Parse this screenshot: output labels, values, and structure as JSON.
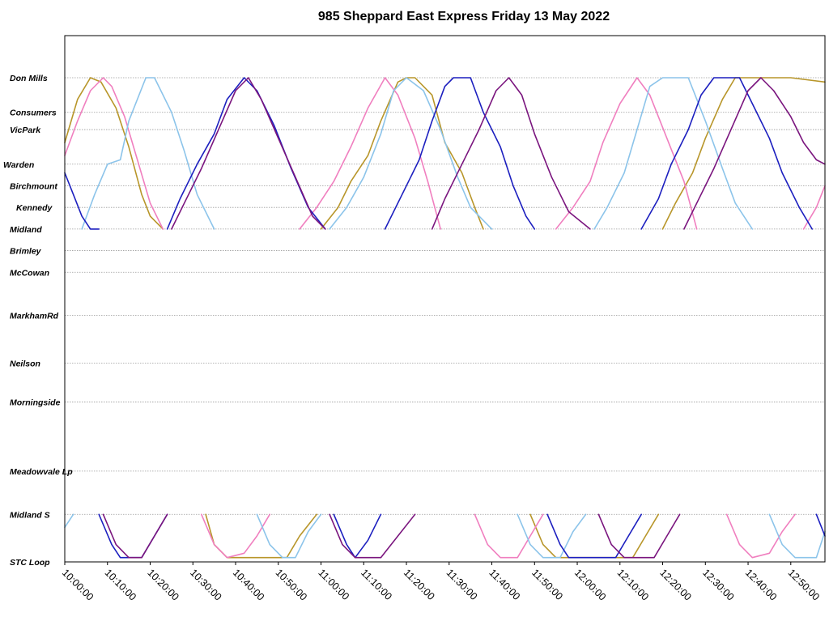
{
  "chart_data": {
    "type": "line",
    "title": "985 Sheppard East Express Friday 13 May 2022",
    "xlabel": "",
    "ylabel": "",
    "xlim": [
      "10:00:00",
      "12:58:00"
    ],
    "x_ticks": [
      "10:00:00",
      "10:10:00",
      "10:20:00",
      "10:30:00",
      "10:40:00",
      "10:50:00",
      "11:00:00",
      "11:10:00",
      "11:20:00",
      "11:30:00",
      "11:40:00",
      "11:50:00",
      "12:00:00",
      "12:10:00",
      "12:20:00",
      "12:30:00",
      "12:40:00",
      "12:50:00"
    ],
    "stops": [
      {
        "name": "Don Mills",
        "km": 0.0
      },
      {
        "name": "Consumers",
        "km": 0.8
      },
      {
        "name": "VicPark",
        "km": 1.2
      },
      {
        "name": "Warden",
        "km": 2.0
      },
      {
        "name": "Birchmount",
        "km": 2.5
      },
      {
        "name": "Kennedy",
        "km": 3.0
      },
      {
        "name": "Midland",
        "km": 3.5
      },
      {
        "name": "Brimley",
        "km": 4.0
      },
      {
        "name": "McCowan",
        "km": 4.5
      },
      {
        "name": "MarkhamRd",
        "km": 5.5
      },
      {
        "name": "Neilson",
        "km": 6.6
      },
      {
        "name": "Morningside",
        "km": 7.5
      },
      {
        "name": "Meadowvale Lp",
        "km": 9.1
      },
      {
        "name": "Midland S",
        "km": 10.1
      },
      {
        "name": "STC Loop",
        "km": 11.2
      }
    ],
    "legend": "none",
    "grid": "horizontal dashed lines at each stop",
    "vehicles": [
      {
        "color": "#b8962a",
        "segments": [
          [
            [
              0,
              1.5
            ],
            [
              3,
              0.5
            ],
            [
              6,
              0
            ],
            [
              8.5,
              0.1
            ],
            [
              12,
              0.7
            ],
            [
              15,
              1.6
            ],
            [
              18,
              2.7
            ],
            [
              20,
              3.2
            ],
            [
              23,
              3.5
            ]
          ],
          [
            [
              33,
              10.1
            ],
            [
              35,
              10.8
            ],
            [
              38,
              11.1
            ],
            [
              45,
              11.1
            ],
            [
              52,
              11.1
            ],
            [
              55,
              10.6
            ],
            [
              59,
              10.1
            ]
          ],
          [
            [
              60,
              3.5
            ],
            [
              64,
              3.0
            ],
            [
              67,
              2.4
            ],
            [
              71,
              1.8
            ],
            [
              74,
              1.0
            ],
            [
              78,
              0.1
            ],
            [
              80,
              0
            ],
            [
              82,
              0
            ],
            [
              86,
              0.4
            ],
            [
              89,
              1.5
            ],
            [
              93,
              2.2
            ],
            [
              96,
              3.0
            ],
            [
              98,
              3.5
            ]
          ],
          [
            [
              109,
              10.1
            ],
            [
              112,
              10.8
            ],
            [
              115,
              11.1
            ],
            [
              125,
              11.1
            ],
            [
              133,
              11.1
            ],
            [
              136,
              10.6
            ],
            [
              139,
              10.1
            ]
          ],
          [
            [
              140,
              3.5
            ],
            [
              143,
              2.9
            ],
            [
              147,
              2.2
            ],
            [
              150,
              1.4
            ],
            [
              154,
              0.5
            ],
            [
              157,
              0
            ],
            [
              166,
              0
            ],
            [
              170,
              0
            ],
            [
              178,
              0.1
            ]
          ]
        ]
      },
      {
        "color": "#f07fbf",
        "segments": [
          [
            [
              0,
              1.8
            ],
            [
              3,
              1.0
            ],
            [
              6,
              0.3
            ],
            [
              9,
              0
            ],
            [
              11,
              0.2
            ],
            [
              14,
              0.9
            ],
            [
              17,
              1.9
            ],
            [
              20,
              2.9
            ],
            [
              23,
              3.5
            ]
          ],
          [
            [
              32,
              10.1
            ],
            [
              35,
              10.8
            ],
            [
              38,
              11.1
            ],
            [
              42,
              11.0
            ],
            [
              45,
              10.6
            ],
            [
              48,
              10.1
            ]
          ],
          [
            [
              55,
              3.5
            ],
            [
              59,
              3.0
            ],
            [
              63,
              2.4
            ],
            [
              67,
              1.6
            ],
            [
              71,
              0.7
            ],
            [
              75,
              0
            ],
            [
              78,
              0.4
            ],
            [
              82,
              1.4
            ],
            [
              85,
              2.4
            ],
            [
              88,
              3.5
            ]
          ],
          [
            [
              96,
              10.1
            ],
            [
              99,
              10.8
            ],
            [
              102,
              11.1
            ],
            [
              106,
              11.1
            ],
            [
              109,
              10.6
            ],
            [
              112,
              10.1
            ]
          ],
          [
            [
              115,
              3.5
            ],
            [
              119,
              3.0
            ],
            [
              123,
              2.4
            ],
            [
              126,
              1.5
            ],
            [
              130,
              0.6
            ],
            [
              134,
              0
            ],
            [
              137,
              0.4
            ],
            [
              141,
              1.4
            ],
            [
              145,
              2.4
            ],
            [
              148,
              3.5
            ]
          ],
          [
            [
              155,
              10.1
            ],
            [
              158,
              10.8
            ],
            [
              161,
              11.1
            ],
            [
              165,
              11.0
            ],
            [
              168,
              10.5
            ],
            [
              171,
              10.1
            ]
          ],
          [
            [
              173,
              3.5
            ],
            [
              176,
              3.0
            ],
            [
              178,
              2.5
            ]
          ]
        ]
      },
      {
        "color": "#8cc4ea",
        "segments": [
          [
            [
              0,
              10.4
            ],
            [
              2,
              10.1
            ]
          ],
          [
            [
              4,
              3.5
            ],
            [
              7,
              2.7
            ],
            [
              10,
              2.0
            ],
            [
              13,
              1.9
            ],
            [
              15,
              1.0
            ],
            [
              19,
              0
            ],
            [
              21,
              0
            ],
            [
              25,
              0.8
            ],
            [
              28,
              1.7
            ],
            [
              31,
              2.7
            ],
            [
              35,
              3.5
            ]
          ],
          [
            [
              45,
              10.1
            ],
            [
              48,
              10.8
            ],
            [
              51,
              11.1
            ],
            [
              54,
              11.1
            ],
            [
              57,
              10.5
            ],
            [
              60,
              10.1
            ]
          ],
          [
            [
              62,
              3.5
            ],
            [
              66,
              3.0
            ],
            [
              70,
              2.3
            ],
            [
              74,
              1.3
            ],
            [
              77,
              0.3
            ],
            [
              80,
              0
            ],
            [
              84,
              0.3
            ],
            [
              88,
              1.2
            ],
            [
              92,
              2.3
            ],
            [
              95,
              3.0
            ],
            [
              100,
              3.5
            ]
          ],
          [
            [
              106,
              10.1
            ],
            [
              109,
              10.8
            ],
            [
              112,
              11.1
            ],
            [
              116,
              11.1
            ],
            [
              119,
              10.5
            ],
            [
              122,
              10.1
            ]
          ],
          [
            [
              124,
              3.5
            ],
            [
              127,
              3.0
            ],
            [
              131,
              2.2
            ],
            [
              134,
              1.2
            ],
            [
              137,
              0.2
            ],
            [
              140,
              0
            ],
            [
              146,
              0
            ],
            [
              150,
              1.0
            ],
            [
              154,
              2.1
            ],
            [
              157,
              2.9
            ],
            [
              161,
              3.5
            ]
          ],
          [
            [
              165,
              10.1
            ],
            [
              168,
              10.8
            ],
            [
              171,
              11.1
            ],
            [
              176,
              11.1
            ],
            [
              178,
              10.5
            ]
          ]
        ]
      },
      {
        "color": "#1c1fbf",
        "segments": [
          [
            [
              0,
              2.2
            ],
            [
              2,
              2.7
            ],
            [
              4,
              3.2
            ],
            [
              6,
              3.5
            ],
            [
              8,
              3.5
            ]
          ],
          [
            [
              8,
              10.1
            ],
            [
              11,
              10.8
            ],
            [
              13,
              11.1
            ],
            [
              18,
              11.1
            ],
            [
              21,
              10.6
            ],
            [
              24,
              10.1
            ]
          ],
          [
            [
              24,
              3.5
            ],
            [
              27,
              2.8
            ],
            [
              31,
              2.0
            ],
            [
              35,
              1.3
            ],
            [
              38,
              0.5
            ],
            [
              42,
              0
            ],
            [
              45,
              0.3
            ],
            [
              49,
              1.1
            ],
            [
              53,
              2.1
            ],
            [
              57,
              3.0
            ],
            [
              61,
              3.5
            ]
          ],
          [
            [
              63,
              10.1
            ],
            [
              66,
              10.8
            ],
            [
              68,
              11.1
            ],
            [
              71,
              10.7
            ],
            [
              74,
              10.1
            ]
          ],
          [
            [
              75,
              3.5
            ],
            [
              79,
              2.7
            ],
            [
              83,
              1.9
            ],
            [
              86,
              1.0
            ],
            [
              89,
              0.2
            ],
            [
              91,
              0
            ],
            [
              95,
              0
            ],
            [
              98,
              0.8
            ],
            [
              102,
              1.6
            ],
            [
              105,
              2.5
            ],
            [
              108,
              3.2
            ],
            [
              110,
              3.5
            ]
          ],
          [
            [
              113,
              10.1
            ],
            [
              116,
              10.8
            ],
            [
              118,
              11.1
            ],
            [
              125,
              11.1
            ],
            [
              129,
              11.1
            ],
            [
              132,
              10.6
            ],
            [
              135,
              10.1
            ]
          ],
          [
            [
              135,
              3.5
            ],
            [
              139,
              2.8
            ],
            [
              142,
              2.0
            ],
            [
              146,
              1.2
            ],
            [
              149,
              0.4
            ],
            [
              152,
              0
            ],
            [
              158,
              0
            ],
            [
              161,
              0.6
            ],
            [
              165,
              1.4
            ],
            [
              168,
              2.2
            ],
            [
              172,
              3.0
            ],
            [
              175,
              3.5
            ]
          ],
          [
            [
              176,
              10.1
            ],
            [
              178,
              10.6
            ]
          ]
        ]
      },
      {
        "color": "#7a157e",
        "segments": [
          [
            [
              9,
              10.1
            ],
            [
              12,
              10.8
            ],
            [
              15,
              11.1
            ],
            [
              18,
              11.1
            ],
            [
              21,
              10.6
            ],
            [
              24,
              10.1
            ]
          ],
          [
            [
              25,
              3.5
            ],
            [
              28,
              2.9
            ],
            [
              32,
              2.1
            ],
            [
              36,
              1.2
            ],
            [
              40,
              0.3
            ],
            [
              43,
              0
            ],
            [
              46,
              0.5
            ],
            [
              50,
              1.4
            ],
            [
              54,
              2.3
            ],
            [
              58,
              3.2
            ],
            [
              61,
              3.5
            ]
          ],
          [
            [
              62,
              10.1
            ],
            [
              65,
              10.8
            ],
            [
              68,
              11.1
            ],
            [
              74,
              11.1
            ],
            [
              78,
              10.6
            ],
            [
              82,
              10.1
            ]
          ],
          [
            [
              86,
              3.5
            ],
            [
              89,
              2.8
            ],
            [
              93,
              2.0
            ],
            [
              97,
              1.2
            ],
            [
              101,
              0.3
            ],
            [
              104,
              0
            ],
            [
              107,
              0.4
            ],
            [
              110,
              1.3
            ],
            [
              114,
              2.3
            ],
            [
              118,
              3.1
            ],
            [
              123,
              3.5
            ]
          ],
          [
            [
              125,
              10.1
            ],
            [
              128,
              10.8
            ],
            [
              131,
              11.1
            ],
            [
              138,
              11.1
            ],
            [
              141,
              10.6
            ],
            [
              144,
              10.1
            ]
          ],
          [
            [
              145,
              3.5
            ],
            [
              148,
              2.9
            ],
            [
              152,
              2.1
            ],
            [
              156,
              1.2
            ],
            [
              160,
              0.3
            ],
            [
              163,
              0
            ],
            [
              166,
              0.3
            ],
            [
              170,
              0.9
            ],
            [
              173,
              1.5
            ],
            [
              176,
              1.9
            ],
            [
              178,
              2.0
            ]
          ]
        ]
      }
    ]
  }
}
